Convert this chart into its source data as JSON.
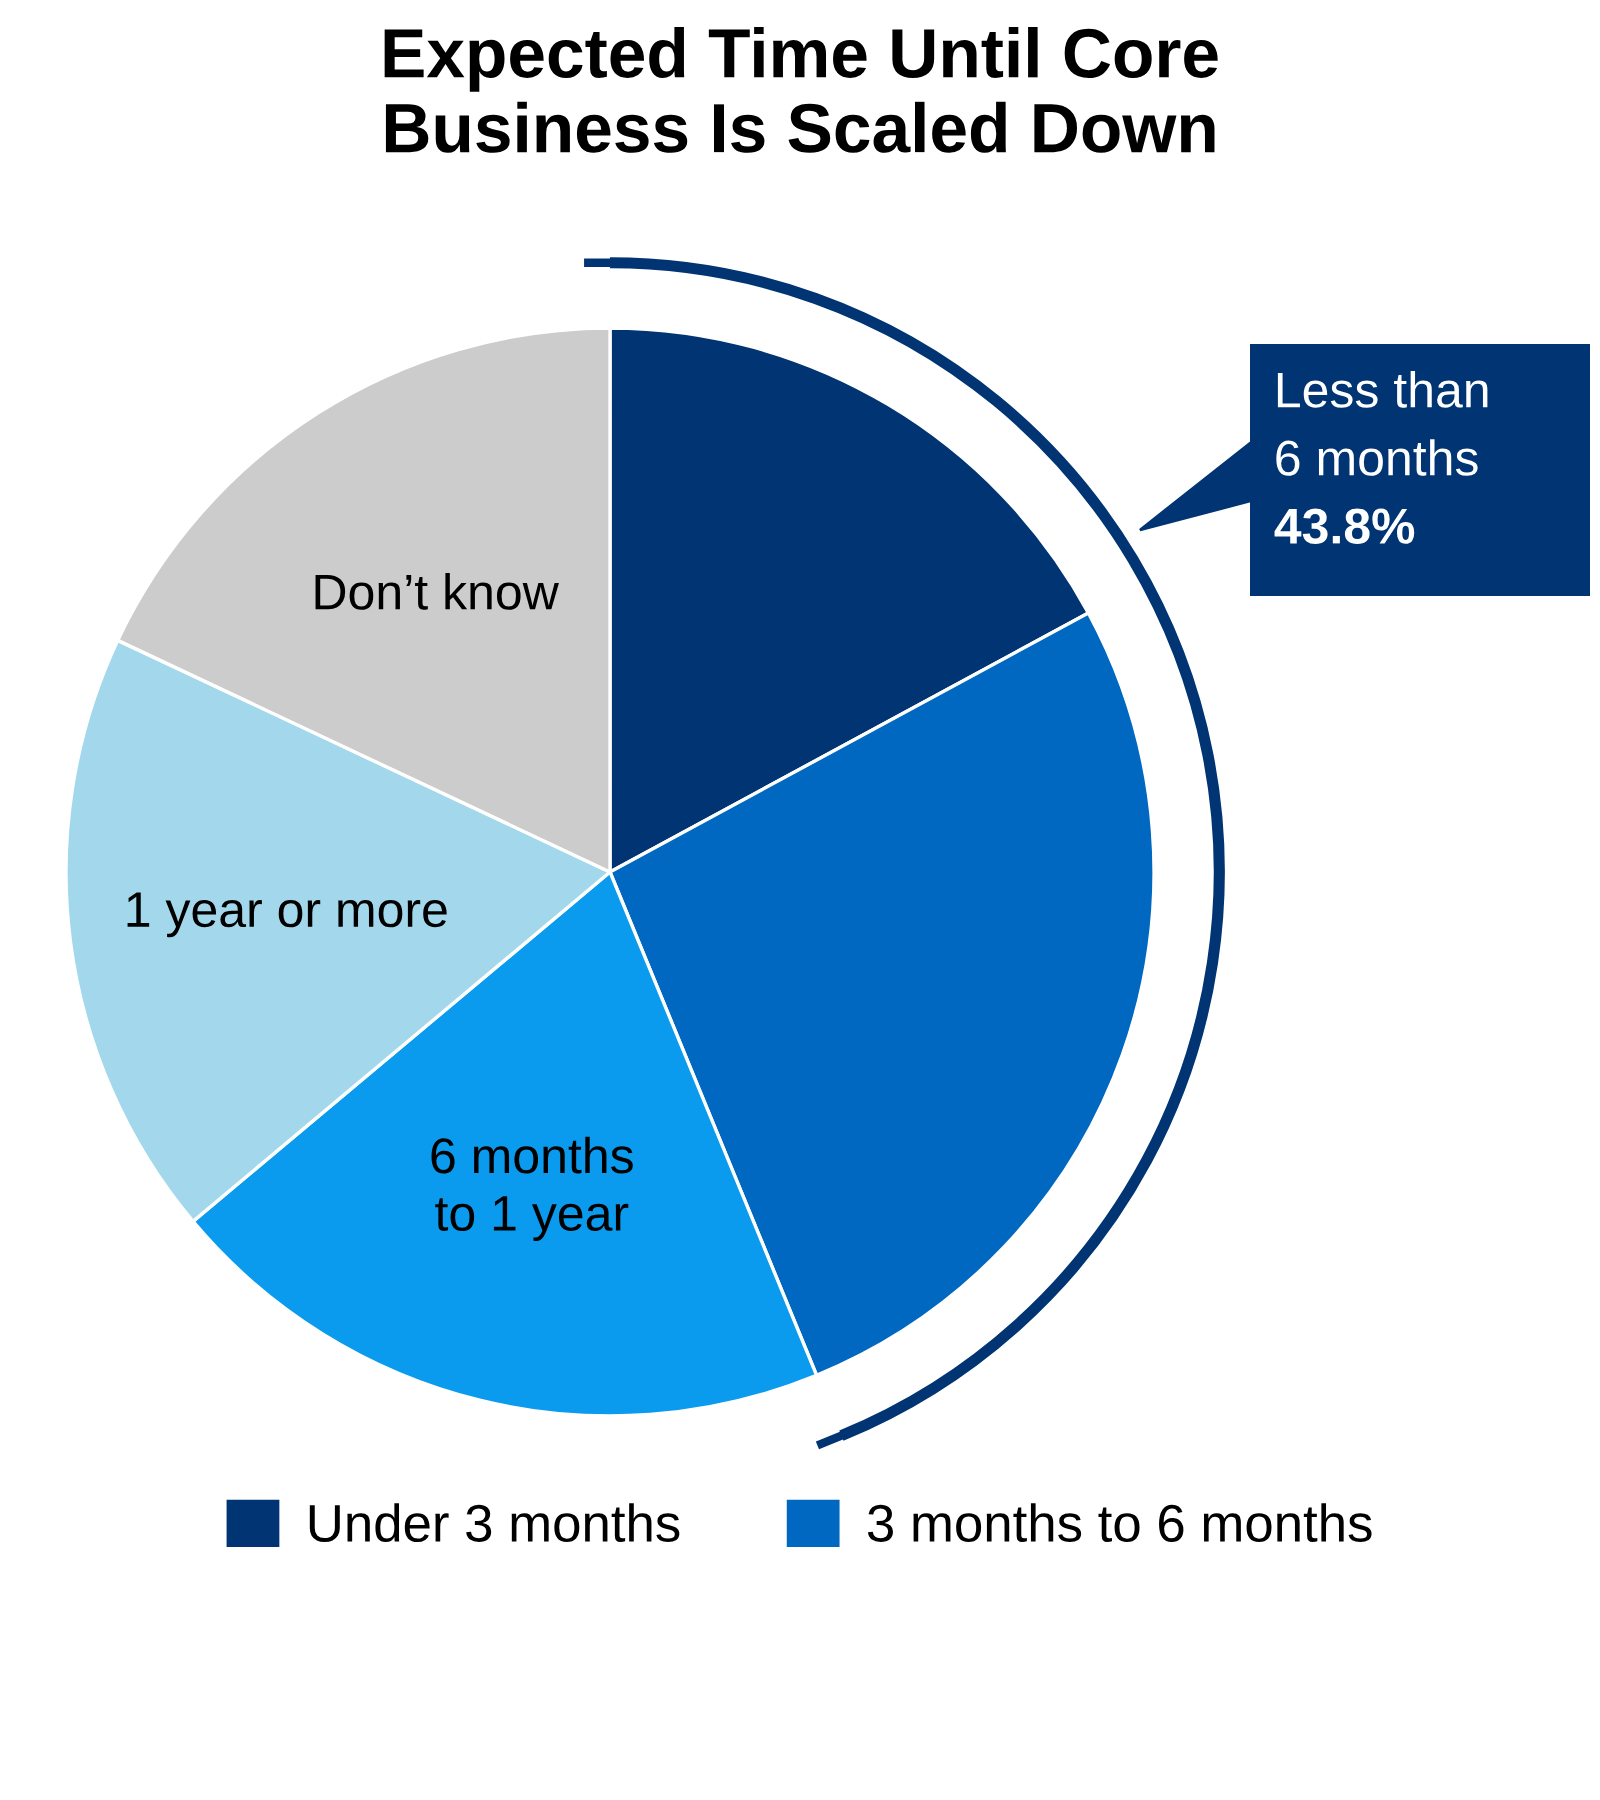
{
  "chart_data": {
    "type": "pie",
    "title": "Expected Time Until Core\nBusiness Is Scaled Down",
    "categories": [
      "Under 3 months",
      "3 months to 6 months",
      "6 months\nto 1 year",
      "1 year or more",
      "Don’t know"
    ],
    "values": [
      17.1,
      26.7,
      20.1,
      18.1,
      18.0
    ],
    "colors": [
      "#003473",
      "#0068c0",
      "#0a9bef",
      "#a3d8ec",
      "#cccccc"
    ],
    "annotations": [
      "Less than\n6 months\n43.8%"
    ],
    "legend": "bottom"
  }
}
